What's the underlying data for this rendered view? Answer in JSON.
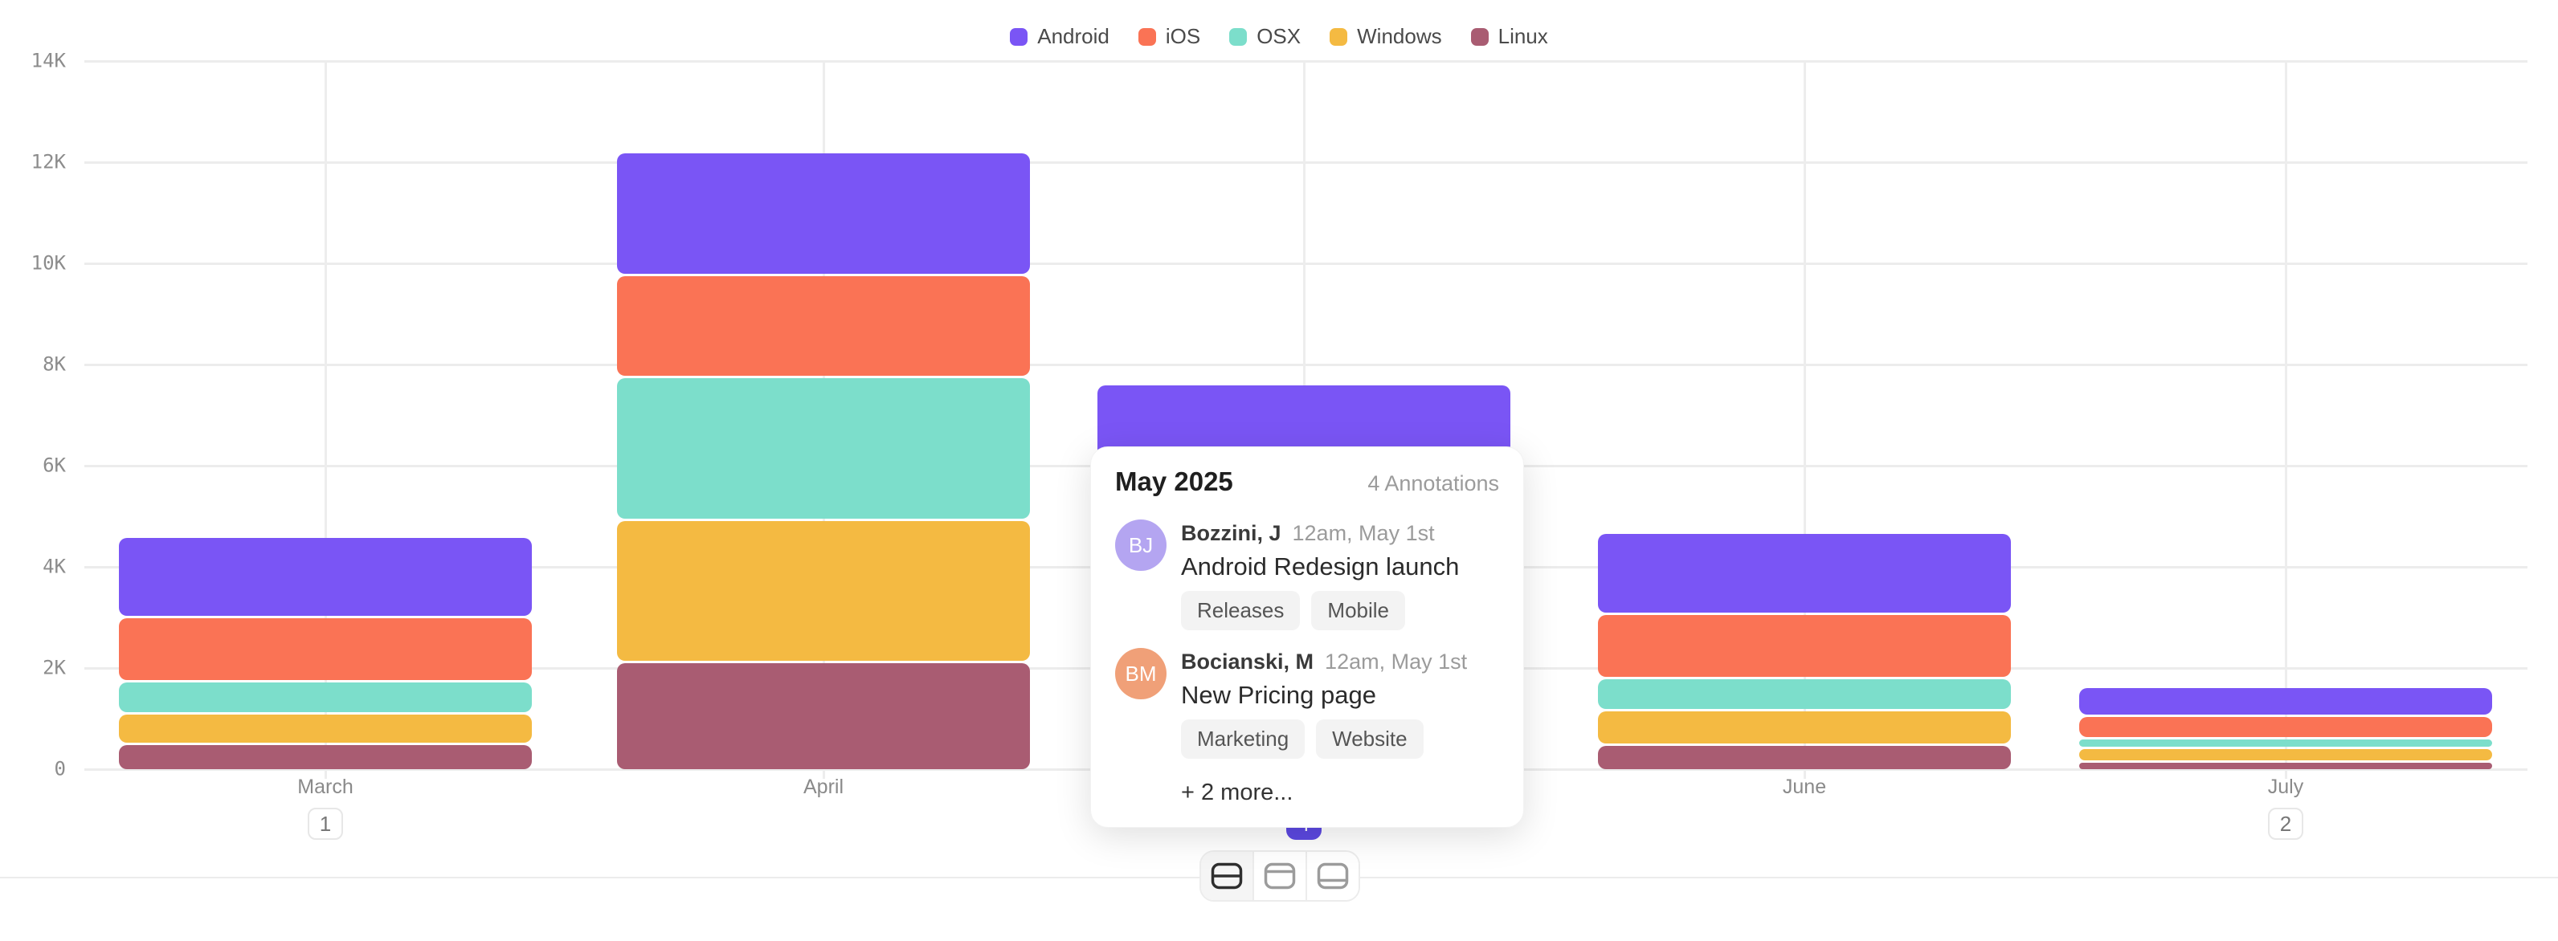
{
  "legend": {
    "items": [
      {
        "label": "Android",
        "color": "#7A55F5"
      },
      {
        "label": "iOS",
        "color": "#FA7355"
      },
      {
        "label": "OSX",
        "color": "#7CDECB"
      },
      {
        "label": "Windows",
        "color": "#F4BA42"
      },
      {
        "label": "Linux",
        "color": "#A95C72"
      }
    ]
  },
  "chart_data": {
    "type": "bar",
    "stacked": true,
    "title": "",
    "xlabel": "",
    "ylabel": "",
    "categories": [
      "March",
      "April",
      "May",
      "June",
      "July"
    ],
    "series": [
      {
        "name": "Android",
        "color": "#7A55F5",
        "values": [
          1540,
          2380,
          2100,
          1560,
          520
        ]
      },
      {
        "name": "iOS",
        "color": "#FA7355",
        "values": [
          1230,
          1970,
          1650,
          1220,
          400
        ]
      },
      {
        "name": "OSX",
        "color": "#7CDECB",
        "values": [
          590,
          2780,
          1450,
          590,
          145
        ]
      },
      {
        "name": "Windows",
        "color": "#F4BA42",
        "values": [
          560,
          2760,
          1250,
          635,
          220
        ]
      },
      {
        "name": "Linux",
        "color": "#A95C72",
        "values": [
          470,
          2100,
          960,
          460,
          130
        ]
      }
    ],
    "yticks": [
      "0",
      "2K",
      "4K",
      "6K",
      "8K",
      "10K",
      "12K",
      "14K"
    ],
    "ylim": [
      0,
      14000
    ],
    "grid": true,
    "legend_position": "top",
    "annotation_badges": [
      {
        "category": "March",
        "count": "1",
        "active": false
      },
      {
        "category": "May",
        "count": "4",
        "active": true
      },
      {
        "category": "July",
        "count": "2",
        "active": false
      }
    ]
  },
  "tooltip": {
    "title": "May 2025",
    "count_label": "4 Annotations",
    "annotations": [
      {
        "initials": "BJ",
        "avatar_color": "#B4A5F1",
        "name": "Bozzini, J",
        "timestamp": "12am, May 1st",
        "title": "Android Redesign launch",
        "tags": [
          "Releases",
          "Mobile"
        ]
      },
      {
        "initials": "BM",
        "avatar_color": "#F0A078",
        "name": "Bocianski, M",
        "timestamp": "12am, May 1st",
        "title": "New Pricing page",
        "tags": [
          "Marketing",
          "Website"
        ]
      }
    ],
    "more_label": "+ 2 more..."
  },
  "layout_toggle": {
    "options": [
      {
        "name": "split-horizontal",
        "active": true
      },
      {
        "name": "top-panel",
        "active": false
      },
      {
        "name": "bottom-panel",
        "active": false
      }
    ]
  },
  "colors": {
    "grid": "#ECECEC",
    "tick_text": "#8C8C8C",
    "axis_text": "#8A8A8A",
    "badge_active_bg": "#5C48E1",
    "badge_text": "#777777",
    "chip_bg": "#F3F3F3"
  }
}
